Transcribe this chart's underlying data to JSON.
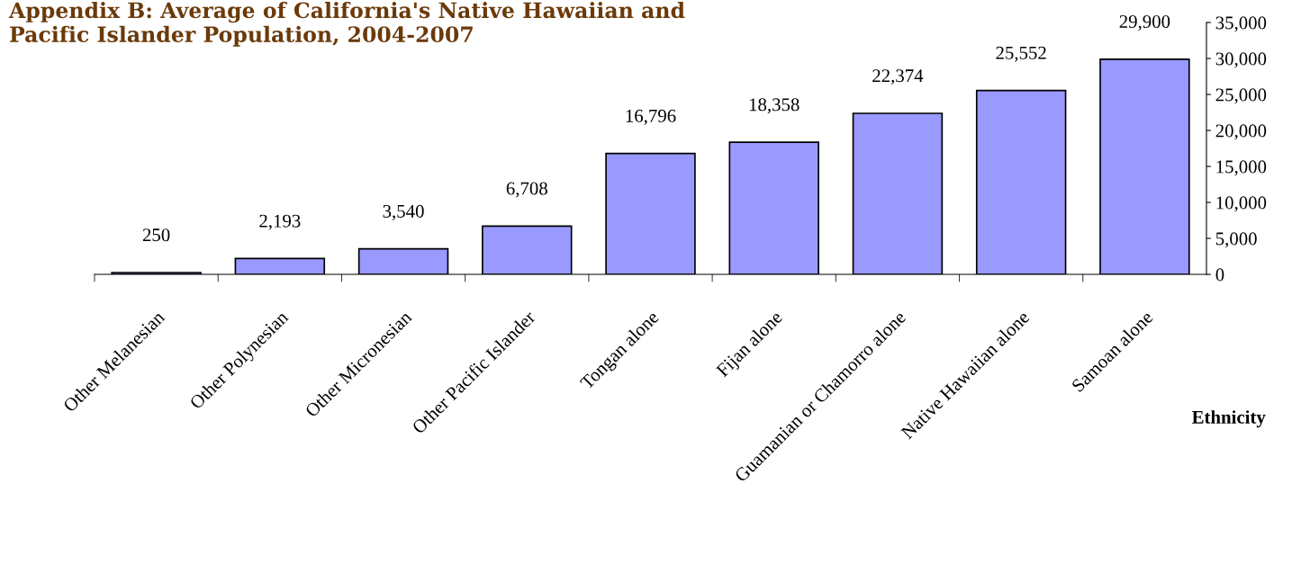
{
  "chart_data": {
    "type": "bar",
    "title": "Appendix B: Average of California's Native Hawaiian and Pacific Islander Population, 2004-2007",
    "xlabel": "Ethnicity",
    "categories": [
      "Other Melanesian",
      "Other Polynesian",
      "Other Micronesian",
      "Other Pacific Islander",
      "Tongan alone",
      "Fijan alone",
      "Guamanian or Chamorro alone",
      "Native Hawaiian alone",
      "Samoan alone"
    ],
    "values": [
      250,
      2193,
      3540,
      6708,
      16796,
      18358,
      22374,
      25552,
      29900
    ],
    "color": "#9999ff",
    "ylim": [
      0,
      35000
    ],
    "yticks": [
      {
        "value": 0,
        "label": "0"
      },
      {
        "value": 5000,
        "label": "5,000"
      },
      {
        "value": 10000,
        "label": "10,000"
      },
      {
        "value": 15000,
        "label": "15,000"
      },
      {
        "value": 20000,
        "label": "20,000"
      },
      {
        "value": 25000,
        "label": "25,000"
      },
      {
        "value": 30000,
        "label": "30,000"
      },
      {
        "value": 35000,
        "label": "35,000"
      }
    ],
    "value_labels": [
      "250",
      "2,193",
      "3,540",
      "6,708",
      "16,796",
      "18,358",
      "22,374",
      "25,552",
      "29,900"
    ],
    "grid": false,
    "legend": false
  }
}
